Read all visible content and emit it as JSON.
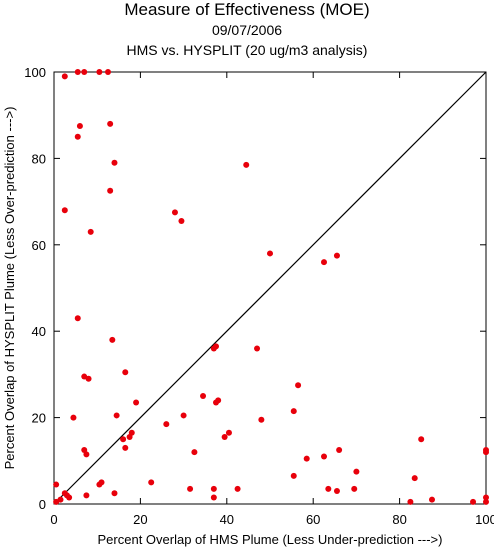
{
  "chart_data": {
    "type": "scatter",
    "title": "Measure of Effectiveness (MOE)",
    "subtitle": "09/07/2006",
    "subtitle2": "HMS vs. HYSPLIT  (20 ug/m3 analysis)",
    "xlabel": "Percent Overlap of HMS Plume (Less Under-prediction --->)",
    "ylabel": "Percent Overlap of HYSPLIT Plume (Less Over-prediction --->)",
    "xlim": [
      0,
      100
    ],
    "ylim": [
      0,
      100
    ],
    "xticks": [
      0,
      20,
      40,
      60,
      80,
      100
    ],
    "yticks": [
      0,
      20,
      40,
      60,
      80,
      100
    ],
    "grid": false,
    "diagonal_line": true,
    "marker_color": "#e8000b",
    "points": [
      [
        2.5,
        99
      ],
      [
        5.5,
        100
      ],
      [
        7,
        100
      ],
      [
        10.5,
        100
      ],
      [
        12.5,
        100
      ],
      [
        6,
        87.5
      ],
      [
        5.5,
        85
      ],
      [
        13,
        88
      ],
      [
        14,
        79
      ],
      [
        13,
        72.5
      ],
      [
        2.5,
        68
      ],
      [
        8.5,
        63
      ],
      [
        5.5,
        43
      ],
      [
        7,
        29.5
      ],
      [
        8,
        29
      ],
      [
        4.5,
        20
      ],
      [
        7,
        12.5
      ],
      [
        7.5,
        11.5
      ],
      [
        2.5,
        2.5
      ],
      [
        3.5,
        1.5
      ],
      [
        1.5,
        1
      ],
      [
        0.5,
        0.5
      ],
      [
        0.5,
        4.5
      ],
      [
        7.5,
        2
      ],
      [
        3,
        2
      ],
      [
        13.5,
        38
      ],
      [
        16.5,
        30.5
      ],
      [
        14.5,
        20.5
      ],
      [
        19,
        23.5
      ],
      [
        18,
        16.5
      ],
      [
        17.5,
        15.5
      ],
      [
        16,
        15
      ],
      [
        16.5,
        13
      ],
      [
        11,
        5
      ],
      [
        10.5,
        4.5
      ],
      [
        14,
        2.5
      ],
      [
        22.5,
        5
      ],
      [
        26,
        18.5
      ],
      [
        28,
        67.5
      ],
      [
        29.5,
        65.5
      ],
      [
        30,
        20.5
      ],
      [
        34.5,
        25
      ],
      [
        32.5,
        12
      ],
      [
        31.5,
        3.5
      ],
      [
        37.5,
        36.5
      ],
      [
        37,
        36
      ],
      [
        38,
        24
      ],
      [
        37.5,
        23.5
      ],
      [
        40.5,
        16.5
      ],
      [
        39.5,
        15.5
      ],
      [
        37,
        3.5
      ],
      [
        37,
        1.5
      ],
      [
        42.5,
        3.5
      ],
      [
        44.5,
        78.5
      ],
      [
        50,
        58
      ],
      [
        47,
        36
      ],
      [
        48,
        19.5
      ],
      [
        55.5,
        21.5
      ],
      [
        56.5,
        27.5
      ],
      [
        58.5,
        10.5
      ],
      [
        55.5,
        6.5
      ],
      [
        62.5,
        56
      ],
      [
        65.5,
        57.5
      ],
      [
        66,
        12.5
      ],
      [
        62.5,
        11
      ],
      [
        63.5,
        3.5
      ],
      [
        65.5,
        3
      ],
      [
        69.5,
        3.5
      ],
      [
        70,
        7.5
      ],
      [
        82.5,
        0.5
      ],
      [
        83.5,
        6
      ],
      [
        85,
        15
      ],
      [
        87.5,
        1
      ],
      [
        97,
        0.5
      ],
      [
        100,
        12.5
      ],
      [
        100,
        12
      ],
      [
        100,
        1.5
      ],
      [
        100,
        0.5
      ]
    ]
  }
}
